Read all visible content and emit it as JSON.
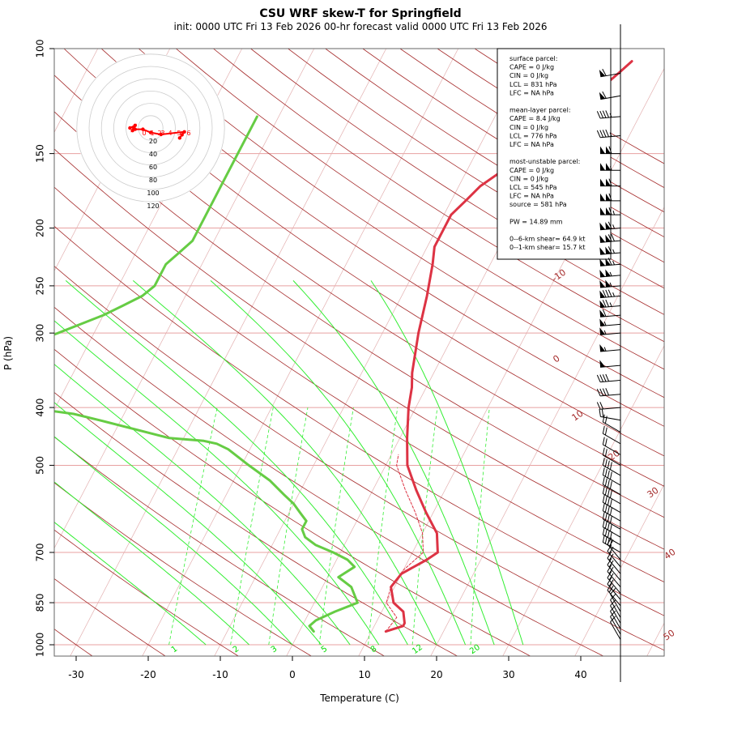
{
  "title": "CSU WRF skew-T for Springfield",
  "subtitle": "init: 0000 UTC Fri 13 Feb 2026     00-hr forecast valid 0000 UTC Fri 13 Feb 2026",
  "colors": {
    "temperature": "#dd3344",
    "dewpoint": "#66cc44",
    "parcel": "#dd3344",
    "isobar": "#e8a0a0",
    "isotherm": "#e3b0b0",
    "dry_adiabat": "#a52a2a",
    "moist_adiabat": "#33ee33",
    "mixing_ratio": "#33ee33",
    "hodograph": "#ff0000"
  },
  "info_box": {
    "lines": [
      "surface parcel:",
      "CAPE = 0 J/kg",
      "CIN = 0 J/kg",
      "LCL = 831 hPa",
      "LFC = NA hPa",
      "",
      "mean-layer parcel:",
      "CAPE = 8.4 J/kg",
      "CIN = 0 J/kg",
      "LCL = 776 hPa",
      "LFC = NA hPa",
      "",
      "most-unstable parcel:",
      "CAPE = 0 J/kg",
      "CIN = 0 J/kg",
      "LCL = 545 hPa",
      "LFC = NA hPa",
      "source = 581 hPa",
      "",
      "PW =  14.89 mm",
      "",
      "0--6-km shear= 64.9 kt",
      "0--1-km shear= 15.7 kt"
    ]
  },
  "hodograph": {
    "rings": [
      20,
      40,
      60,
      80,
      100,
      120
    ],
    "ring_labels": [
      "20",
      "40",
      "60",
      "80",
      "100",
      "120"
    ],
    "points": [
      [
        11.2,
        -7.7
      ],
      [
        12.1,
        -5.3
      ],
      [
        13,
        -3
      ],
      [
        4,
        -5
      ],
      [
        0,
        -3.5
      ],
      [
        -3,
        -1
      ],
      [
        -6,
        -1
      ],
      [
        -7,
        -2
      ],
      [
        -6.5,
        0
      ],
      [
        -6,
        2
      ],
      [
        -8,
        0
      ]
    ],
    "point_labels": [
      "6",
      "5",
      "4",
      "3",
      "2",
      "1",
      "0"
    ]
  },
  "chart_data": {
    "type": "skew-T log-p",
    "title": "CSU WRF skew-T for Springfield",
    "xlabel": "Temperature (C)",
    "ylabel": "P (hPa)",
    "xlim": [
      -35,
      45
    ],
    "x_ticks": [
      -30,
      -20,
      -10,
      0,
      10,
      20,
      30,
      40
    ],
    "x_tick_labels": [
      "-30",
      "-20",
      "-10",
      "0",
      "10",
      "20",
      "30",
      "40"
    ],
    "p_ticks": [
      100,
      150,
      200,
      250,
      300,
      400,
      500,
      700,
      850,
      1000
    ],
    "p_tick_labels": [
      "100",
      "150",
      "200",
      "250",
      "300",
      "400",
      "500",
      "700",
      "850",
      "1000"
    ],
    "dry_adiabat_labels": [
      "-10",
      "0",
      "10",
      "20",
      "30",
      "40",
      "50"
    ],
    "mixing_ratio_labels": [
      "1",
      "2",
      "3",
      "5",
      "8",
      "12",
      "20"
    ],
    "series": [
      {
        "name": "temperature",
        "pressure": [
          950,
          930,
          920,
          880,
          850,
          800,
          760,
          720,
          700,
          650,
          600,
          550,
          500,
          450,
          400,
          370,
          350,
          300,
          260,
          230,
          215,
          200,
          190,
          180,
          170,
          160,
          150,
          140,
          130,
          120,
          110,
          105
        ],
        "values": [
          12,
          14,
          14,
          13,
          11,
          9.5,
          10,
          12.5,
          13.5,
          12,
          9,
          6,
          3,
          1,
          -1,
          -2,
          -3,
          -5,
          -6.5,
          -8,
          -9,
          -9,
          -9,
          -8,
          -7,
          -5,
          -3,
          -2,
          0,
          2,
          4,
          5
        ]
      },
      {
        "name": "dewpoint",
        "pressure": [
          950,
          930,
          910,
          880,
          850,
          800,
          770,
          740,
          720,
          700,
          680,
          660,
          640,
          620,
          600,
          580,
          560,
          530,
          500,
          470,
          460,
          455,
          450,
          420,
          410,
          400,
          390,
          380,
          370,
          350,
          320,
          300,
          280,
          270,
          260,
          250,
          240,
          230,
          220,
          210,
          200,
          190,
          180,
          170,
          160,
          150,
          140,
          130
        ],
        "values": [
          2,
          1,
          1.5,
          3.5,
          6,
          4,
          1.5,
          3,
          1.5,
          -1,
          -4,
          -6,
          -7,
          -7,
          -8.5,
          -10,
          -12,
          -15,
          -19,
          -23,
          -25,
          -27,
          -32,
          -43,
          -47,
          -54,
          -60,
          -66,
          -72,
          -67,
          -60,
          -55,
          -50,
          -48,
          -46,
          -45,
          -45,
          -45,
          -44,
          -43,
          -43,
          -43,
          -43,
          -43,
          -43,
          -43,
          -43,
          -43
        ]
      },
      {
        "name": "parcel",
        "pressure": [
          950,
          900,
          850,
          800,
          750,
          700,
          650,
          600,
          550,
          500,
          480
        ],
        "values": [
          12,
          12.5,
          10,
          9.5,
          10,
          11.5,
          10,
          7.5,
          4.5,
          1.5,
          1
        ]
      }
    ],
    "wind_barbs": {
      "pressure": [
        110,
        120,
        130,
        140,
        150,
        160,
        170,
        180,
        190,
        200,
        210,
        220,
        230,
        240,
        250,
        260,
        270,
        280,
        290,
        300,
        320,
        340,
        360,
        380,
        400,
        420,
        440,
        460,
        480,
        500,
        520,
        540,
        560,
        580,
        600,
        620,
        640,
        660,
        680,
        700,
        720,
        740,
        760,
        780,
        800,
        820,
        840,
        860,
        880,
        900,
        920,
        940,
        960,
        980
      ],
      "speed_kt": [
        60,
        60,
        45,
        45,
        110,
        105,
        110,
        110,
        115,
        115,
        120,
        115,
        115,
        105,
        105,
        85,
        75,
        60,
        55,
        55,
        55,
        50,
        40,
        40,
        20,
        20,
        20,
        20,
        20,
        20,
        40,
        40,
        40,
        40,
        40,
        40,
        40,
        40,
        40,
        40,
        20,
        20,
        20,
        20,
        20,
        20,
        20,
        20,
        10,
        10,
        10,
        10,
        10,
        10
      ],
      "direction_deg": [
        260,
        260,
        265,
        265,
        270,
        270,
        270,
        270,
        270,
        265,
        265,
        265,
        265,
        265,
        265,
        265,
        265,
        265,
        265,
        265,
        265,
        265,
        265,
        265,
        265,
        280,
        300,
        300,
        300,
        300,
        300,
        300,
        300,
        300,
        300,
        300,
        300,
        300,
        300,
        300,
        320,
        320,
        320,
        320,
        320,
        320,
        320,
        320,
        330,
        330,
        330,
        330,
        330,
        330
      ]
    }
  }
}
